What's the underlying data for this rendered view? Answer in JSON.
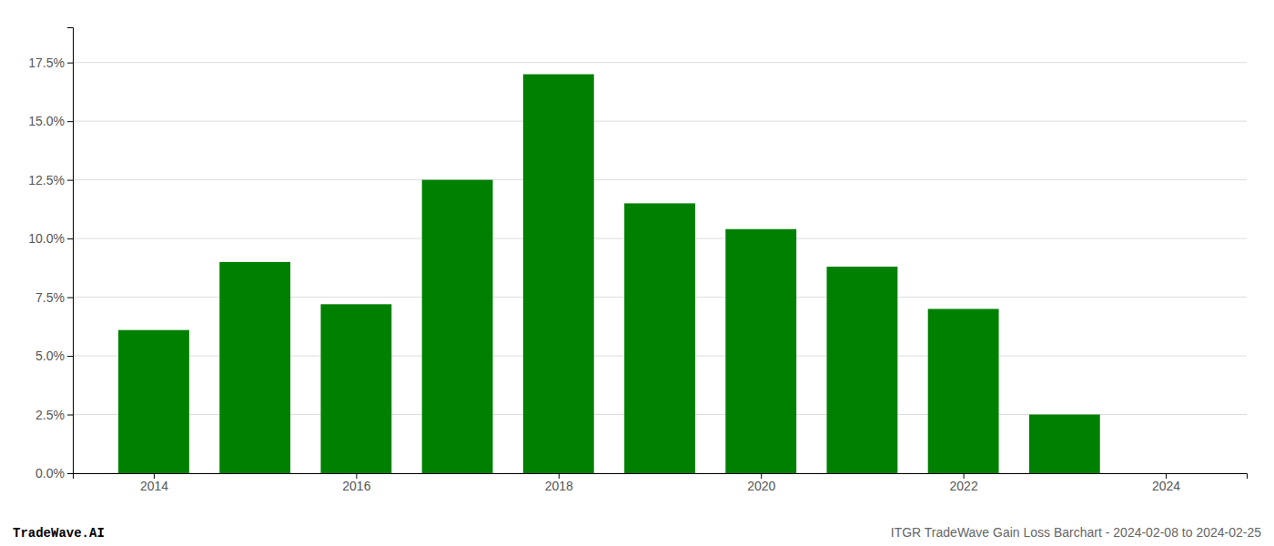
{
  "chart_data": {
    "type": "bar",
    "x": [
      2014,
      2015,
      2016,
      2017,
      2018,
      2019,
      2020,
      2021,
      2022,
      2023
    ],
    "values": [
      0.061,
      0.09,
      0.072,
      0.125,
      0.17,
      0.115,
      0.104,
      0.088,
      0.07,
      0.025
    ],
    "color": "#008000",
    "xlim": [
      2013.2,
      2024.8
    ],
    "xticks": [
      2014,
      2016,
      2018,
      2020,
      2022,
      2024
    ],
    "ylim": [
      0,
      0.19
    ],
    "yticks": [
      {
        "value": 0.0,
        "label": "0.0%"
      },
      {
        "value": 0.025,
        "label": "2.5%"
      },
      {
        "value": 0.05,
        "label": "5.0%"
      },
      {
        "value": 0.075,
        "label": "7.5%"
      },
      {
        "value": 0.1,
        "label": "10.0%"
      },
      {
        "value": 0.125,
        "label": "12.5%"
      },
      {
        "value": 0.15,
        "label": "15.0%"
      },
      {
        "value": 0.175,
        "label": "17.5%"
      }
    ],
    "grid": true,
    "annotations": [
      "TradeWave.AI",
      "ITGR TradeWave Gain Loss Barchart - 2024-02-08 to 2024-02-25"
    ]
  }
}
